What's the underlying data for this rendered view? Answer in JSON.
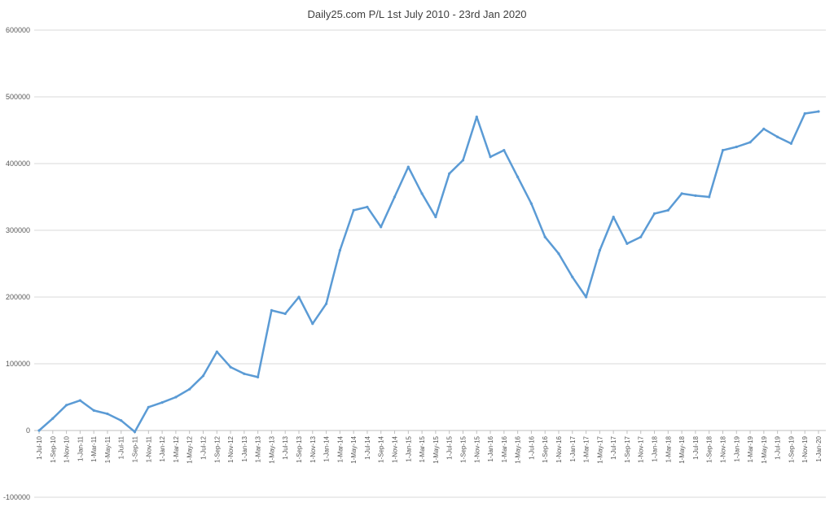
{
  "chart_data": {
    "type": "line",
    "title": "Daily25.com P/L 1st July 2010 - 23rd Jan 2020",
    "xlabel": "",
    "ylabel": "",
    "ylim": [
      -100000,
      600000
    ],
    "yticks": [
      600000,
      500000,
      400000,
      300000,
      200000,
      100000,
      0,
      -100000
    ],
    "ytick_labels": [
      "600000",
      "500000",
      "400000",
      "300000",
      "200000",
      "100000",
      "0",
      "-100000"
    ],
    "grid": true,
    "legend": "none",
    "line_color": "#5b9bd5",
    "xtick_labels": [
      "1-Jul-10",
      "1-Sep-10",
      "1-Nov-10",
      "1-Jan-11",
      "1-Mar-11",
      "1-May-11",
      "1-Jul-11",
      "1-Sep-11",
      "1-Nov-11",
      "1-Jan-12",
      "1-Mar-12",
      "1-May-12",
      "1-Jul-12",
      "1-Sep-12",
      "1-Nov-12",
      "1-Jan-13",
      "1-Mar-13",
      "1-May-13",
      "1-Jul-13",
      "1-Sep-13",
      "1-Nov-13",
      "1-Jan-14",
      "1-Mar-14",
      "1-May-14",
      "1-Jul-14",
      "1-Sep-14",
      "1-Nov-14",
      "1-Jan-15",
      "1-Mar-15",
      "1-May-15",
      "1-Jul-15",
      "1-Sep-15",
      "1-Nov-15",
      "1-Jan-16",
      "1-Mar-16",
      "1-May-16",
      "1-Jul-16",
      "1-Sep-16",
      "1-Nov-16",
      "1-Jan-17",
      "1-Mar-17",
      "1-May-17",
      "1-Jul-17",
      "1-Sep-17",
      "1-Nov-17",
      "1-Jan-18",
      "1-Mar-18",
      "1-May-18",
      "1-Jul-18",
      "1-Sep-18",
      "1-Nov-18",
      "1-Jan-19",
      "1-Mar-19",
      "1-May-19",
      "1-Jul-19",
      "1-Sep-19",
      "1-Nov-19",
      "1-Jan-20"
    ],
    "series": [
      {
        "name": "P/L",
        "x": [
          0,
          1,
          2,
          3,
          4,
          5,
          6,
          7,
          8,
          9,
          10,
          11,
          12,
          13,
          14,
          15,
          16,
          17,
          18,
          19,
          20,
          21,
          22,
          23,
          24,
          25,
          26,
          27,
          28,
          29,
          30,
          31,
          32,
          33,
          34,
          35,
          36,
          37,
          38,
          39,
          40,
          41,
          42,
          43,
          44,
          45,
          46,
          47,
          48,
          49,
          50,
          51,
          52,
          53,
          54,
          55,
          56,
          57
        ],
        "values": [
          0,
          18000,
          38000,
          45000,
          30000,
          25000,
          15000,
          -2000,
          35000,
          42000,
          50000,
          62000,
          82000,
          118000,
          95000,
          85000,
          80000,
          180000,
          175000,
          200000,
          160000,
          190000,
          270000,
          330000,
          335000,
          305000,
          350000,
          395000,
          355000,
          320000,
          385000,
          405000,
          470000,
          410000,
          420000,
          380000,
          340000,
          290000,
          265000,
          230000,
          200000,
          270000,
          320000,
          280000,
          290000,
          325000,
          330000,
          355000,
          352000,
          350000,
          420000,
          425000,
          432000,
          452000,
          440000,
          430000,
          475000,
          478000
        ]
      }
    ]
  }
}
